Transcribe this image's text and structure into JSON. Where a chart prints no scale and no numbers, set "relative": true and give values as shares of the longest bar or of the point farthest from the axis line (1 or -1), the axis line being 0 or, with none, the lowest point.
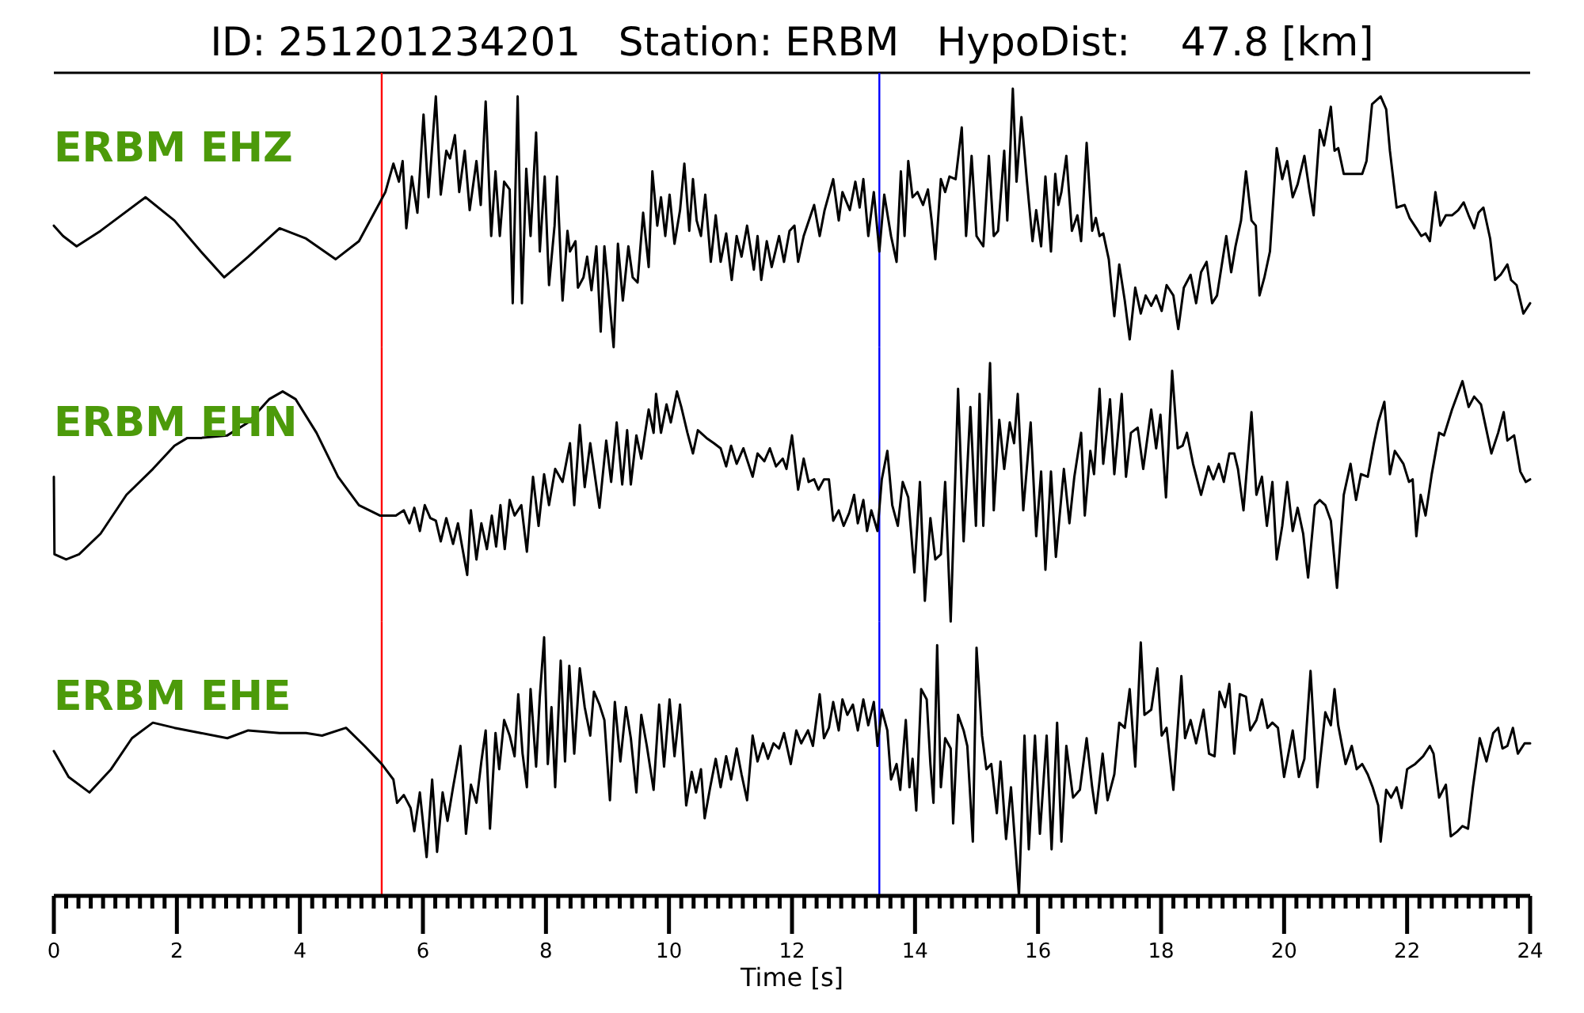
{
  "chart_data": [
    {
      "type": "line",
      "title": "ID: 251201234201   Station: ERBM   HypoDist:    47.8 [km]",
      "xlim": [
        0,
        24
      ],
      "relative": true,
      "tick_labels": false,
      "ref_lines": [
        {
          "axis": "x",
          "value": 5.33,
          "color": "#ff0000"
        },
        {
          "axis": "x",
          "value": 13.42,
          "color": "#0000ff"
        }
      ],
      "series": [
        {
          "name": "ERBM EHZ",
          "color": "#000000",
          "x": [
            0,
            0.15,
            0.37,
            0.76,
            1.49,
            1.96,
            2.39,
            2.77,
            3.16,
            3.67,
            4.1,
            4.58,
            4.96,
            5.3,
            5.39,
            5.52,
            5.61,
            5.67,
            5.73,
            5.82,
            5.91,
            6.01,
            6.09,
            6.21,
            6.29,
            6.38,
            6.44,
            6.52,
            6.59,
            6.68,
            6.76,
            6.87,
            6.94,
            7.02,
            7.11,
            7.18,
            7.25,
            7.32,
            7.41,
            7.46,
            7.54,
            7.61,
            7.68,
            7.75,
            7.84,
            7.9,
            7.98,
            8.05,
            8.14,
            8.18,
            8.27,
            8.35,
            8.39,
            8.48,
            8.52,
            8.61,
            8.67,
            8.74,
            8.82,
            8.89,
            8.95,
            9.01,
            9.1,
            9.17,
            9.25,
            9.34,
            9.41,
            9.49,
            9.58,
            9.67,
            9.73,
            9.81,
            9.87,
            9.94,
            10.01,
            10.09,
            10.18,
            10.25,
            10.33,
            10.39,
            10.45,
            10.52,
            10.59,
            10.68,
            10.76,
            10.84,
            10.93,
            11.02,
            11.1,
            11.18,
            11.27,
            11.38,
            11.44,
            11.5,
            11.59,
            11.67,
            11.79,
            11.87,
            11.96,
            12.04,
            12.1,
            12.19,
            12.36,
            12.45,
            12.53,
            12.67,
            12.76,
            12.82,
            12.94,
            13.03,
            13.1,
            13.16,
            13.24,
            13.33,
            13.42,
            13.5,
            13.61,
            13.7,
            13.77,
            13.83,
            13.89,
            13.96,
            14.04,
            14.13,
            14.21,
            14.27,
            14.33,
            14.42,
            14.49,
            14.56,
            14.66,
            14.76,
            14.83,
            14.92,
            15.0,
            15.11,
            15.2,
            15.28,
            15.35,
            15.45,
            15.5,
            15.59,
            15.65,
            15.73,
            15.82,
            15.91,
            15.97,
            16.05,
            16.12,
            16.21,
            16.28,
            16.33,
            16.38,
            16.46,
            16.55,
            16.64,
            16.7,
            16.79,
            16.88,
            16.94,
            17.0,
            17.06,
            17.15,
            17.24,
            17.32,
            17.41,
            17.49,
            17.58,
            17.67,
            17.75,
            17.84,
            17.92,
            18.01,
            18.09,
            18.2,
            18.28,
            18.37,
            18.48,
            18.57,
            18.65,
            18.74,
            18.83,
            18.91,
            19.06,
            19.14,
            19.21,
            19.3,
            19.38,
            19.47,
            19.54,
            19.6,
            19.68,
            19.77,
            19.88,
            19.97,
            20.05,
            20.14,
            20.22,
            20.33,
            20.41,
            20.48,
            20.58,
            20.65,
            20.76,
            20.82,
            20.88,
            20.97,
            21.1,
            21.27,
            21.34,
            21.43,
            21.57,
            21.66,
            21.72,
            21.83,
            21.96,
            22.04,
            22.15,
            22.23,
            22.3,
            22.37,
            22.46,
            22.54,
            22.63,
            22.73,
            22.83,
            22.92,
            23.0,
            23.09,
            23.16,
            23.24,
            23.35,
            23.43,
            23.52,
            23.63,
            23.69,
            23.78,
            23.89,
            24.0
          ],
          "values": [
            0.47,
            0.43,
            0.39,
            0.45,
            0.58,
            0.49,
            0.37,
            0.27,
            0.35,
            0.46,
            0.42,
            0.34,
            0.41,
            0.56,
            0.6,
            0.71,
            0.64,
            0.72,
            0.46,
            0.66,
            0.52,
            0.9,
            0.58,
            0.97,
            0.59,
            0.76,
            0.73,
            0.82,
            0.6,
            0.76,
            0.53,
            0.72,
            0.55,
            0.95,
            0.43,
            0.68,
            0.43,
            0.64,
            0.61,
            0.17,
            0.97,
            0.17,
            0.69,
            0.43,
            0.83,
            0.37,
            0.66,
            0.24,
            0.47,
            0.66,
            0.18,
            0.45,
            0.37,
            0.41,
            0.23,
            0.27,
            0.35,
            0.22,
            0.39,
            0.06,
            0.39,
            0.24,
            0,
            0.4,
            0.18,
            0.39,
            0.27,
            0.25,
            0.52,
            0.31,
            0.68,
            0.47,
            0.58,
            0.43,
            0.59,
            0.4,
            0.53,
            0.71,
            0.45,
            0.65,
            0.49,
            0.43,
            0.59,
            0.33,
            0.51,
            0.33,
            0.44,
            0.26,
            0.43,
            0.35,
            0.47,
            0.3,
            0.43,
            0.26,
            0.41,
            0.31,
            0.43,
            0.33,
            0.45,
            0.47,
            0.33,
            0.43,
            0.55,
            0.43,
            0.53,
            0.65,
            0.49,
            0.6,
            0.53,
            0.64,
            0.54,
            0.65,
            0.43,
            0.6,
            0.37,
            0.59,
            0.43,
            0.33,
            0.68,
            0.43,
            0.72,
            0.58,
            0.6,
            0.55,
            0.61,
            0.49,
            0.34,
            0.65,
            0.6,
            0.66,
            0.65,
            0.85,
            0.43,
            0.74,
            0.43,
            0.39,
            0.74,
            0.43,
            0.45,
            0.76,
            0.49,
            1,
            0.64,
            0.89,
            0.64,
            0.41,
            0.53,
            0.39,
            0.66,
            0.37,
            0.67,
            0.55,
            0.6,
            0.74,
            0.45,
            0.51,
            0.41,
            0.79,
            0.45,
            0.5,
            0.43,
            0.44,
            0.34,
            0.12,
            0.32,
            0.18,
            0.03,
            0.23,
            0.13,
            0.2,
            0.16,
            0.2,
            0.14,
            0.24,
            0.2,
            0.07,
            0.23,
            0.28,
            0.17,
            0.29,
            0.33,
            0.17,
            0.2,
            0.43,
            0.29,
            0.39,
            0.49,
            0.68,
            0.49,
            0.47,
            0.2,
            0.27,
            0.37,
            0.77,
            0.65,
            0.72,
            0.58,
            0.63,
            0.74,
            0.61,
            0.51,
            0.84,
            0.78,
            0.93,
            0.76,
            0.77,
            0.67,
            0.67,
            0.67,
            0.72,
            0.94,
            0.97,
            0.92,
            0.76,
            0.54,
            0.55,
            0.5,
            0.46,
            0.43,
            0.44,
            0.41,
            0.6,
            0.47,
            0.51,
            0.51,
            0.53,
            0.56,
            0.51,
            0.46,
            0.52,
            0.54,
            0.42,
            0.26,
            0.28,
            0.32,
            0.26,
            0.24,
            0.13,
            0.17
          ]
        }
      ]
    },
    {
      "type": "line",
      "xlim": [
        0,
        24
      ],
      "relative": true,
      "tick_labels": false,
      "ref_lines": [
        {
          "axis": "x",
          "value": 5.33,
          "color": "#ff0000"
        },
        {
          "axis": "x",
          "value": 13.42,
          "color": "#0000ff"
        }
      ],
      "series": [
        {
          "name": "ERBM EHN",
          "color": "#000000",
          "x": [
            0,
            0.01,
            0.2,
            0.41,
            0.76,
            1.18,
            1.61,
            1.96,
            2.17,
            2.39,
            2.82,
            3.16,
            3.5,
            3.72,
            3.93,
            4.27,
            4.62,
            4.96,
            5.3,
            5.56,
            5.69,
            5.78,
            5.86,
            5.95,
            6.03,
            6.12,
            6.21,
            6.29,
            6.38,
            6.49,
            6.57,
            6.72,
            6.78,
            6.87,
            6.95,
            7.04,
            7.12,
            7.19,
            7.26,
            7.33,
            7.41,
            7.49,
            7.6,
            7.69,
            7.79,
            7.88,
            7.97,
            8.05,
            8.15,
            8.27,
            8.39,
            8.46,
            8.55,
            8.63,
            8.72,
            8.87,
            8.98,
            9.06,
            9.15,
            9.24,
            9.32,
            9.38,
            9.47,
            9.55,
            9.67,
            9.75,
            9.79,
            9.87,
            9.96,
            10.03,
            10.13,
            10.2,
            10.3,
            10.39,
            10.47,
            10.61,
            10.73,
            10.84,
            10.93,
            11.01,
            11.1,
            11.21,
            11.36,
            11.44,
            11.55,
            11.64,
            11.74,
            11.85,
            11.91,
            12.0,
            12.1,
            12.19,
            12.27,
            12.36,
            12.43,
            12.52,
            12.6,
            12.67,
            12.76,
            12.84,
            12.93,
            13.01,
            13.07,
            13.16,
            13.22,
            13.29,
            13.39,
            13.46,
            13.55,
            13.63,
            13.72,
            13.8,
            13.89,
            13.99,
            14.08,
            14.16,
            14.25,
            14.33,
            14.42,
            14.49,
            14.58,
            14.7,
            14.79,
            14.9,
            14.99,
            15.05,
            15.11,
            15.22,
            15.28,
            15.37,
            15.45,
            15.54,
            15.61,
            15.67,
            15.76,
            15.88,
            15.97,
            16.05,
            16.12,
            16.21,
            16.29,
            16.42,
            16.51,
            16.59,
            16.7,
            16.76,
            16.85,
            16.91,
            17.0,
            17.06,
            17.17,
            17.24,
            17.36,
            17.43,
            17.51,
            17.62,
            17.71,
            17.84,
            17.92,
            17.99,
            18.08,
            18.18,
            18.27,
            18.35,
            18.42,
            18.52,
            18.65,
            18.77,
            18.85,
            18.94,
            19.02,
            19.11,
            19.19,
            19.25,
            19.34,
            19.47,
            19.55,
            19.64,
            19.72,
            19.81,
            19.88,
            19.97,
            20.05,
            20.14,
            20.22,
            20.31,
            20.39,
            20.5,
            20.58,
            20.67,
            20.76,
            20.86,
            20.97,
            21.08,
            21.17,
            21.25,
            21.36,
            21.46,
            21.53,
            21.63,
            21.72,
            21.8,
            21.94,
            22.03,
            22.09,
            22.15,
            22.22,
            22.3,
            22.4,
            22.52,
            22.6,
            22.73,
            22.9,
            23.0,
            23.09,
            23.2,
            23.29,
            23.37,
            23.48,
            23.57,
            23.63,
            23.74,
            23.84,
            23.93,
            24.0
          ],
          "values": [
            0.56,
            0.26,
            0.24,
            0.26,
            0.34,
            0.49,
            0.59,
            0.68,
            0.71,
            0.71,
            0.72,
            0.77,
            0.86,
            0.89,
            0.86,
            0.73,
            0.56,
            0.45,
            0.41,
            0.41,
            0.43,
            0.38,
            0.44,
            0.35,
            0.45,
            0.4,
            0.39,
            0.31,
            0.4,
            0.3,
            0.38,
            0.18,
            0.43,
            0.24,
            0.38,
            0.28,
            0.41,
            0.29,
            0.45,
            0.28,
            0.47,
            0.41,
            0.45,
            0.27,
            0.56,
            0.37,
            0.57,
            0.45,
            0.59,
            0.54,
            0.69,
            0.45,
            0.76,
            0.52,
            0.69,
            0.44,
            0.7,
            0.54,
            0.77,
            0.53,
            0.74,
            0.53,
            0.72,
            0.63,
            0.82,
            0.73,
            0.88,
            0.73,
            0.84,
            0.77,
            0.89,
            0.83,
            0.73,
            0.65,
            0.74,
            0.71,
            0.69,
            0.67,
            0.6,
            0.68,
            0.61,
            0.67,
            0.56,
            0.65,
            0.62,
            0.67,
            0.6,
            0.63,
            0.59,
            0.72,
            0.51,
            0.63,
            0.54,
            0.55,
            0.51,
            0.55,
            0.55,
            0.39,
            0.43,
            0.37,
            0.42,
            0.49,
            0.38,
            0.47,
            0.35,
            0.43,
            0.35,
            0.55,
            0.66,
            0.45,
            0.37,
            0.54,
            0.48,
            0.19,
            0.54,
            0.08,
            0.4,
            0.24,
            0.26,
            0.54,
            0,
            0.9,
            0.31,
            0.83,
            0.37,
            0.88,
            0.37,
            1,
            0.43,
            0.78,
            0.59,
            0.77,
            0.69,
            0.88,
            0.43,
            0.77,
            0.33,
            0.58,
            0.2,
            0.58,
            0.25,
            0.59,
            0.38,
            0.56,
            0.73,
            0.41,
            0.66,
            0.57,
            0.9,
            0.61,
            0.86,
            0.57,
            0.88,
            0.56,
            0.73,
            0.75,
            0.59,
            0.82,
            0.67,
            0.8,
            0.48,
            0.97,
            0.67,
            0.68,
            0.73,
            0.61,
            0.49,
            0.6,
            0.55,
            0.61,
            0.54,
            0.65,
            0.65,
            0.59,
            0.43,
            0.81,
            0.49,
            0.56,
            0.37,
            0.54,
            0.24,
            0.37,
            0.54,
            0.35,
            0.44,
            0.34,
            0.17,
            0.45,
            0.47,
            0.45,
            0.39,
            0.13,
            0.49,
            0.61,
            0.47,
            0.57,
            0.56,
            0.69,
            0.77,
            0.85,
            0.57,
            0.66,
            0.61,
            0.54,
            0.55,
            0.33,
            0.49,
            0.41,
            0.57,
            0.73,
            0.72,
            0.82,
            0.93,
            0.83,
            0.87,
            0.84,
            0.74,
            0.65,
            0.73,
            0.81,
            0.7,
            0.72,
            0.58,
            0.54,
            0.55
          ]
        }
      ]
    },
    {
      "type": "line",
      "xlabel": "Time [s]",
      "xlim": [
        0,
        24
      ],
      "relative": true,
      "tick_labels": "x",
      "xticks": [
        0,
        {
          "value": 0.2,
          "label": null
        },
        {
          "value": 0.4,
          "label": null
        },
        {
          "value": 0.6,
          "label": null
        },
        {
          "value": 0.8,
          "label": null
        },
        {
          "value": 1,
          "label": null
        },
        {
          "value": 1.2,
          "label": null
        },
        {
          "value": 1.4,
          "label": null
        },
        {
          "value": 1.6,
          "label": null
        },
        {
          "value": 1.8,
          "label": null
        },
        2,
        {
          "value": 2.2,
          "label": null
        },
        {
          "value": 2.4,
          "label": null
        },
        {
          "value": 2.6,
          "label": null
        },
        {
          "value": 2.8,
          "label": null
        },
        {
          "value": 3,
          "label": null
        },
        {
          "value": 3.2,
          "label": null
        },
        {
          "value": 3.4,
          "label": null
        },
        {
          "value": 3.6,
          "label": null
        },
        {
          "value": 3.8,
          "label": null
        },
        4,
        {
          "value": 4.2,
          "label": null
        },
        {
          "value": 4.4,
          "label": null
        },
        {
          "value": 4.6,
          "label": null
        },
        {
          "value": 4.8,
          "label": null
        },
        {
          "value": 5,
          "label": null
        },
        {
          "value": 5.2,
          "label": null
        },
        {
          "value": 5.4,
          "label": null
        },
        {
          "value": 5.6,
          "label": null
        },
        {
          "value": 5.8,
          "label": null
        },
        6,
        {
          "value": 6.2,
          "label": null
        },
        {
          "value": 6.4,
          "label": null
        },
        {
          "value": 6.6,
          "label": null
        },
        {
          "value": 6.8,
          "label": null
        },
        {
          "value": 7,
          "label": null
        },
        {
          "value": 7.2,
          "label": null
        },
        {
          "value": 7.4,
          "label": null
        },
        {
          "value": 7.6,
          "label": null
        },
        {
          "value": 7.8,
          "label": null
        },
        8,
        {
          "value": 8.2,
          "label": null
        },
        {
          "value": 8.4,
          "label": null
        },
        {
          "value": 8.6,
          "label": null
        },
        {
          "value": 8.8,
          "label": null
        },
        {
          "value": 9,
          "label": null
        },
        {
          "value": 9.2,
          "label": null
        },
        {
          "value": 9.4,
          "label": null
        },
        {
          "value": 9.6,
          "label": null
        },
        {
          "value": 9.8,
          "label": null
        },
        10,
        {
          "value": 10.2,
          "label": null
        },
        {
          "value": 10.4,
          "label": null
        },
        {
          "value": 10.6,
          "label": null
        },
        {
          "value": 10.8,
          "label": null
        },
        {
          "value": 11,
          "label": null
        },
        {
          "value": 11.2,
          "label": null
        },
        {
          "value": 11.4,
          "label": null
        },
        {
          "value": 11.6,
          "label": null
        },
        {
          "value": 11.8,
          "label": null
        },
        12,
        {
          "value": 12.2,
          "label": null
        },
        {
          "value": 12.4,
          "label": null
        },
        {
          "value": 12.6,
          "label": null
        },
        {
          "value": 12.8,
          "label": null
        },
        {
          "value": 13,
          "label": null
        },
        {
          "value": 13.2,
          "label": null
        },
        {
          "value": 13.4,
          "label": null
        },
        {
          "value": 13.6,
          "label": null
        },
        {
          "value": 13.8,
          "label": null
        },
        14,
        {
          "value": 14.2,
          "label": null
        },
        {
          "value": 14.4,
          "label": null
        },
        {
          "value": 14.6,
          "label": null
        },
        {
          "value": 14.8,
          "label": null
        },
        {
          "value": 15,
          "label": null
        },
        {
          "value": 15.2,
          "label": null
        },
        {
          "value": 15.4,
          "label": null
        },
        {
          "value": 15.6,
          "label": null
        },
        {
          "value": 15.8,
          "label": null
        },
        16,
        {
          "value": 16.2,
          "label": null
        },
        {
          "value": 16.4,
          "label": null
        },
        {
          "value": 16.6,
          "label": null
        },
        {
          "value": 16.8,
          "label": null
        },
        {
          "value": 17,
          "label": null
        },
        {
          "value": 17.2,
          "label": null
        },
        {
          "value": 17.4,
          "label": null
        },
        {
          "value": 17.6,
          "label": null
        },
        {
          "value": 17.8,
          "label": null
        },
        18,
        {
          "value": 18.2,
          "label": null
        },
        {
          "value": 18.4,
          "label": null
        },
        {
          "value": 18.6,
          "label": null
        },
        {
          "value": 18.8,
          "label": null
        },
        {
          "value": 19,
          "label": null
        },
        {
          "value": 19.2,
          "label": null
        },
        {
          "value": 19.4,
          "label": null
        },
        {
          "value": 19.6,
          "label": null
        },
        {
          "value": 19.8,
          "label": null
        },
        20,
        {
          "value": 20.2,
          "label": null
        },
        {
          "value": 20.4,
          "label": null
        },
        {
          "value": 20.6,
          "label": null
        },
        {
          "value": 20.8,
          "label": null
        },
        {
          "value": 21,
          "label": null
        },
        {
          "value": 21.2,
          "label": null
        },
        {
          "value": 21.4,
          "label": null
        },
        {
          "value": 21.6,
          "label": null
        },
        {
          "value": 21.8,
          "label": null
        },
        22,
        {
          "value": 22.2,
          "label": null
        },
        {
          "value": 22.4,
          "label": null
        },
        {
          "value": 22.6,
          "label": null
        },
        {
          "value": 22.8,
          "label": null
        },
        {
          "value": 23,
          "label": null
        },
        {
          "value": 23.2,
          "label": null
        },
        {
          "value": 23.4,
          "label": null
        },
        {
          "value": 23.6,
          "label": null
        },
        {
          "value": 23.8,
          "label": null
        },
        24
      ],
      "ref_lines": [
        {
          "axis": "x",
          "value": 5.33,
          "color": "#ff0000"
        },
        {
          "axis": "x",
          "value": 13.42,
          "color": "#0000ff"
        }
      ],
      "series": [
        {
          "name": "ERBM EHE",
          "color": "#000000",
          "x": [
            0,
            0.24,
            0.58,
            0.93,
            1.27,
            1.61,
            1.96,
            2.39,
            2.82,
            3.16,
            3.67,
            4.1,
            4.36,
            4.75,
            5.05,
            5.33,
            5.52,
            5.58,
            5.69,
            5.8,
            5.86,
            5.95,
            6.06,
            6.15,
            6.23,
            6.32,
            6.4,
            6.49,
            6.61,
            6.7,
            6.78,
            6.87,
            6.95,
            7.02,
            7.09,
            7.18,
            7.24,
            7.32,
            7.41,
            7.49,
            7.55,
            7.62,
            7.69,
            7.75,
            7.84,
            7.9,
            7.97,
            8.03,
            8.09,
            8.15,
            8.24,
            8.31,
            8.38,
            8.46,
            8.55,
            8.63,
            8.72,
            8.78,
            8.87,
            8.95,
            9.04,
            9.12,
            9.21,
            9.3,
            9.38,
            9.47,
            9.55,
            9.64,
            9.75,
            9.84,
            9.92,
            10.01,
            10.09,
            10.18,
            10.28,
            10.37,
            10.44,
            10.52,
            10.58,
            10.67,
            10.76,
            10.84,
            10.93,
            11.01,
            11.1,
            11.18,
            11.27,
            11.36,
            11.44,
            11.53,
            11.61,
            11.7,
            11.79,
            11.87,
            11.98,
            12.07,
            12.15,
            12.26,
            12.34,
            12.45,
            12.52,
            12.6,
            12.67,
            12.76,
            12.82,
            12.9,
            12.99,
            13.07,
            13.16,
            13.24,
            13.33,
            13.39,
            13.46,
            13.55,
            13.61,
            13.7,
            13.76,
            13.85,
            13.91,
            13.96,
            14.02,
            14.1,
            14.19,
            14.25,
            14.3,
            14.36,
            14.42,
            14.49,
            14.58,
            14.62,
            14.7,
            14.79,
            14.85,
            14.94,
            15.0,
            15.09,
            15.16,
            15.24,
            15.33,
            15.39,
            15.48,
            15.56,
            15.69,
            15.78,
            15.85,
            15.95,
            16.03,
            16.14,
            16.22,
            16.31,
            16.38,
            16.46,
            16.57,
            16.68,
            16.79,
            16.88,
            16.94,
            17.05,
            17.13,
            17.24,
            17.32,
            17.41,
            17.49,
            17.58,
            17.67,
            17.73,
            17.84,
            17.94,
            18.01,
            18.09,
            18.2,
            18.33,
            18.39,
            18.48,
            18.57,
            18.69,
            18.78,
            18.87,
            18.95,
            19.04,
            19.11,
            19.19,
            19.28,
            19.38,
            19.45,
            19.55,
            19.64,
            19.73,
            19.81,
            19.9,
            20.0,
            20.14,
            20.24,
            20.33,
            20.43,
            20.54,
            20.67,
            20.76,
            20.82,
            20.88,
            21.0,
            21.1,
            21.18,
            21.27,
            21.36,
            21.44,
            21.53,
            21.57,
            21.66,
            21.74,
            21.83,
            21.91,
            22.0,
            22.13,
            22.26,
            22.37,
            22.43,
            22.52,
            22.63,
            22.71,
            22.82,
            22.9,
            22.99,
            23.07,
            23.18,
            23.29,
            23.4,
            23.48,
            23.55,
            23.63,
            23.72,
            23.8,
            23.91,
            24.0
          ],
          "values": [
            0.56,
            0.46,
            0.4,
            0.49,
            0.61,
            0.67,
            0.65,
            0.63,
            0.61,
            0.64,
            0.63,
            0.63,
            0.62,
            0.65,
            0.58,
            0.51,
            0.45,
            0.36,
            0.39,
            0.34,
            0.25,
            0.4,
            0.15,
            0.45,
            0.17,
            0.4,
            0.29,
            0.42,
            0.58,
            0.24,
            0.43,
            0.36,
            0.52,
            0.64,
            0.26,
            0.63,
            0.49,
            0.68,
            0.62,
            0.54,
            0.78,
            0.55,
            0.42,
            0.8,
            0.5,
            0.77,
            1,
            0.51,
            0.73,
            0.42,
            0.91,
            0.52,
            0.89,
            0.55,
            0.88,
            0.73,
            0.62,
            0.79,
            0.74,
            0.68,
            0.37,
            0.75,
            0.52,
            0.73,
            0.61,
            0.4,
            0.7,
            0.58,
            0.41,
            0.74,
            0.5,
            0.76,
            0.54,
            0.74,
            0.35,
            0.48,
            0.4,
            0.49,
            0.3,
            0.42,
            0.53,
            0.42,
            0.54,
            0.45,
            0.57,
            0.47,
            0.37,
            0.62,
            0.52,
            0.59,
            0.53,
            0.59,
            0.57,
            0.63,
            0.51,
            0.64,
            0.59,
            0.64,
            0.58,
            0.78,
            0.61,
            0.65,
            0.75,
            0.64,
            0.76,
            0.7,
            0.74,
            0.64,
            0.76,
            0.66,
            0.75,
            0.58,
            0.72,
            0.64,
            0.45,
            0.51,
            0.41,
            0.68,
            0.42,
            0.53,
            0.33,
            0.8,
            0.76,
            0.51,
            0.36,
            0.97,
            0.42,
            0.61,
            0.57,
            0.28,
            0.7,
            0.64,
            0.58,
            0.21,
            0.96,
            0.62,
            0.49,
            0.51,
            0.32,
            0.52,
            0.22,
            0.42,
            0,
            0.62,
            0.18,
            0.62,
            0.24,
            0.62,
            0.18,
            0.67,
            0.21,
            0.58,
            0.38,
            0.41,
            0.61,
            0.42,
            0.32,
            0.55,
            0.37,
            0.47,
            0.67,
            0.65,
            0.8,
            0.5,
            0.98,
            0.7,
            0.72,
            0.88,
            0.62,
            0.65,
            0.41,
            0.85,
            0.61,
            0.68,
            0.59,
            0.72,
            0.55,
            0.54,
            0.79,
            0.73,
            0.82,
            0.55,
            0.78,
            0.77,
            0.64,
            0.68,
            0.76,
            0.65,
            0.67,
            0.65,
            0.46,
            0.64,
            0.46,
            0.53,
            0.87,
            0.42,
            0.71,
            0.66,
            0.8,
            0.66,
            0.51,
            0.58,
            0.49,
            0.51,
            0.47,
            0.42,
            0.35,
            0.21,
            0.41,
            0.38,
            0.42,
            0.34,
            0.49,
            0.51,
            0.54,
            0.58,
            0.55,
            0.38,
            0.43,
            0.23,
            0.25,
            0.27,
            0.26,
            0.42,
            0.61,
            0.52,
            0.63,
            0.65,
            0.57,
            0.58,
            0.65,
            0.55,
            0.59,
            0.59
          ]
        }
      ]
    }
  ]
}
